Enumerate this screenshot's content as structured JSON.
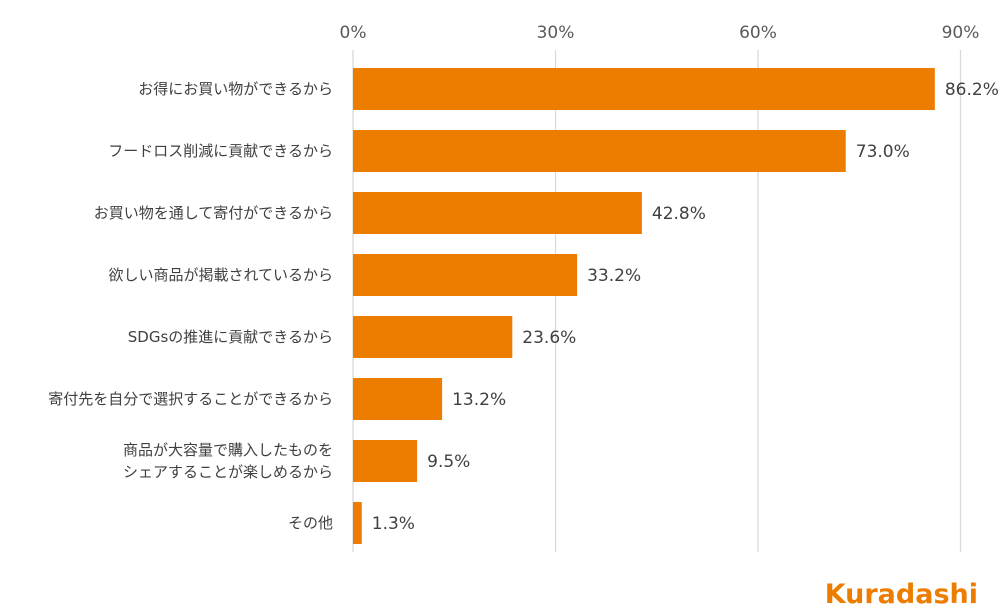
{
  "chart_data": {
    "type": "bar",
    "orientation": "horizontal",
    "categories": [
      [
        "お得にお買い物ができるから"
      ],
      [
        "フードロス削減に貢献できるから"
      ],
      [
        "お買い物を通して寄付ができるから"
      ],
      [
        "欲しい商品が掲載されているから"
      ],
      [
        "SDGsの推進に貢献できるから"
      ],
      [
        "寄付先を自分で選択することができるから"
      ],
      [
        "商品が大容量で購入したものを",
        "シェアすることが楽しめるから"
      ],
      [
        "その他"
      ]
    ],
    "values": [
      86.2,
      73.0,
      42.8,
      33.2,
      23.6,
      13.2,
      9.5,
      1.3
    ],
    "data_labels": [
      "86.2%",
      "73.0%",
      "42.8%",
      "33.2%",
      "23.6%",
      "13.2%",
      "9.5%",
      "1.3%"
    ],
    "x_ticks": [
      0,
      30,
      60,
      90
    ],
    "x_tick_labels": [
      "0%",
      "30%",
      "60%",
      "90%"
    ],
    "xlim": [
      0,
      90
    ],
    "x_axis_position": "top",
    "grid": true,
    "legend": "none",
    "bar_color": "#ED7D00",
    "grid_color": "#D9D9D9"
  },
  "logo": {
    "text": "Kuradashi",
    "color": "#ED7D00"
  }
}
